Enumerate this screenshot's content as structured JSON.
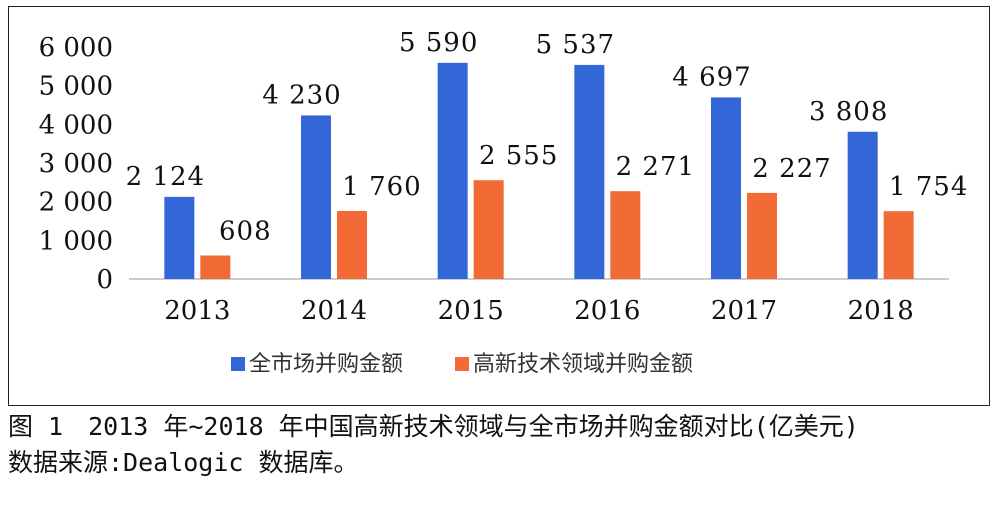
{
  "caption": {
    "title": "图 1　2013 年~2018 年中国高新技术领域与全市场并购金额对比(亿美元)",
    "source": "数据来源:Dealogic 数据库。"
  },
  "chart_data": {
    "type": "bar",
    "categories": [
      "2013",
      "2014",
      "2015",
      "2016",
      "2017",
      "2018"
    ],
    "series": [
      {
        "name": "全市场并购金额",
        "values": [
          2124,
          4230,
          5590,
          5537,
          4697,
          3808
        ],
        "color": "#3366d6",
        "labels": [
          "2 124",
          "4 230",
          "5 590",
          "5 537",
          "4 697",
          "3 808"
        ]
      },
      {
        "name": "高新技术领域并购金额",
        "values": [
          608,
          1760,
          2555,
          2271,
          2227,
          1754
        ],
        "color": "#f26a35",
        "labels": [
          "608",
          "1 760",
          "2 555",
          "2 271",
          "2 227",
          "1 754"
        ]
      }
    ],
    "ylim": [
      0,
      6000
    ],
    "yticks": [
      0,
      1000,
      2000,
      3000,
      4000,
      5000,
      6000
    ],
    "ytick_labels": [
      "0",
      "1 000",
      "2 000",
      "3 000",
      "4 000",
      "5 000",
      "6 000"
    ],
    "legend_position": "bottom",
    "grid": false
  }
}
